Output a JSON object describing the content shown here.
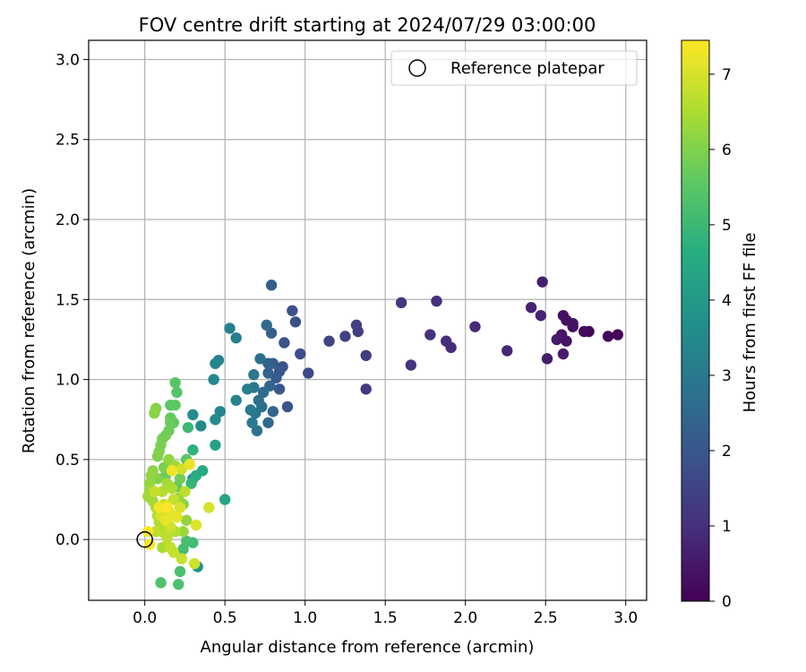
{
  "chart_data": {
    "type": "scatter",
    "title": "FOV centre drift starting at 2024/07/29 03:00:00",
    "xlabel": "Angular distance from reference (arcmin)",
    "ylabel": "Rotation from reference (arcmin)",
    "xlim": [
      -0.35,
      3.13
    ],
    "ylim": [
      -0.38,
      3.12
    ],
    "xticks": [
      "0.0",
      "0.5",
      "1.0",
      "1.5",
      "2.0",
      "2.5",
      "3.0"
    ],
    "yticks": [
      "0.0",
      "0.5",
      "1.0",
      "1.5",
      "2.0",
      "2.5",
      "3.0"
    ],
    "grid": true,
    "legend": {
      "placement": "top-right",
      "entries": [
        "Reference platepar"
      ]
    },
    "reference_point": {
      "x": 0.0,
      "y": 0.0
    },
    "colorbar": {
      "label": "Hours from first FF file",
      "colormap": "viridis",
      "range": [
        0,
        7.45
      ],
      "ticks": [
        "0",
        "1",
        "2",
        "3",
        "4",
        "5",
        "6",
        "7"
      ]
    },
    "points": [
      {
        "x": 2.95,
        "y": 1.28,
        "h": 0.05
      },
      {
        "x": 2.89,
        "y": 1.27,
        "h": 0.1
      },
      {
        "x": 2.77,
        "y": 1.3,
        "h": 0.15
      },
      {
        "x": 2.74,
        "y": 1.3,
        "h": 0.2
      },
      {
        "x": 2.67,
        "y": 1.33,
        "h": 0.25
      },
      {
        "x": 2.63,
        "y": 1.37,
        "h": 0.3
      },
      {
        "x": 2.61,
        "y": 1.4,
        "h": 0.35
      },
      {
        "x": 2.67,
        "y": 1.35,
        "h": 0.38
      },
      {
        "x": 2.63,
        "y": 1.24,
        "h": 0.4
      },
      {
        "x": 2.6,
        "y": 1.28,
        "h": 0.45
      },
      {
        "x": 2.57,
        "y": 1.25,
        "h": 0.5
      },
      {
        "x": 2.61,
        "y": 1.16,
        "h": 0.55
      },
      {
        "x": 2.51,
        "y": 1.13,
        "h": 0.6
      },
      {
        "x": 2.48,
        "y": 1.61,
        "h": 0.65
      },
      {
        "x": 2.47,
        "y": 1.4,
        "h": 0.7
      },
      {
        "x": 2.41,
        "y": 1.45,
        "h": 0.75
      },
      {
        "x": 2.26,
        "y": 1.18,
        "h": 0.8
      },
      {
        "x": 2.06,
        "y": 1.33,
        "h": 0.85
      },
      {
        "x": 1.91,
        "y": 1.2,
        "h": 0.9
      },
      {
        "x": 1.88,
        "y": 1.24,
        "h": 0.95
      },
      {
        "x": 1.82,
        "y": 1.49,
        "h": 1.0
      },
      {
        "x": 1.78,
        "y": 1.28,
        "h": 1.05
      },
      {
        "x": 1.66,
        "y": 1.09,
        "h": 1.1
      },
      {
        "x": 1.6,
        "y": 1.48,
        "h": 1.15
      },
      {
        "x": 1.38,
        "y": 0.94,
        "h": 1.25
      },
      {
        "x": 1.38,
        "y": 1.15,
        "h": 1.3
      },
      {
        "x": 1.33,
        "y": 1.3,
        "h": 1.35
      },
      {
        "x": 1.32,
        "y": 1.34,
        "h": 1.4
      },
      {
        "x": 1.25,
        "y": 1.27,
        "h": 1.45
      },
      {
        "x": 1.15,
        "y": 1.24,
        "h": 1.5
      },
      {
        "x": 1.02,
        "y": 1.04,
        "h": 1.6
      },
      {
        "x": 0.97,
        "y": 1.16,
        "h": 1.7
      },
      {
        "x": 0.94,
        "y": 1.36,
        "h": 1.75
      },
      {
        "x": 0.92,
        "y": 1.43,
        "h": 1.8
      },
      {
        "x": 0.89,
        "y": 0.83,
        "h": 1.85
      },
      {
        "x": 0.87,
        "y": 1.23,
        "h": 1.9
      },
      {
        "x": 0.86,
        "y": 1.08,
        "h": 1.95
      },
      {
        "x": 0.84,
        "y": 0.94,
        "h": 2.0
      },
      {
        "x": 0.84,
        "y": 1.05,
        "h": 2.05
      },
      {
        "x": 0.82,
        "y": 1.01,
        "h": 2.1
      },
      {
        "x": 0.8,
        "y": 1.1,
        "h": 2.15
      },
      {
        "x": 0.79,
        "y": 1.59,
        "h": 2.2
      },
      {
        "x": 0.79,
        "y": 1.29,
        "h": 2.25
      },
      {
        "x": 0.77,
        "y": 1.1,
        "h": 2.3
      },
      {
        "x": 0.77,
        "y": 1.04,
        "h": 2.35
      },
      {
        "x": 0.78,
        "y": 0.96,
        "h": 2.4
      },
      {
        "x": 0.8,
        "y": 0.8,
        "h": 2.45
      },
      {
        "x": 0.77,
        "y": 0.73,
        "h": 2.5
      },
      {
        "x": 0.76,
        "y": 1.34,
        "h": 2.55
      },
      {
        "x": 0.74,
        "y": 0.92,
        "h": 2.6
      },
      {
        "x": 0.73,
        "y": 0.83,
        "h": 2.65
      },
      {
        "x": 0.71,
        "y": 0.87,
        "h": 2.7
      },
      {
        "x": 0.72,
        "y": 1.13,
        "h": 2.75
      },
      {
        "x": 0.7,
        "y": 0.68,
        "h": 2.8
      },
      {
        "x": 0.69,
        "y": 0.79,
        "h": 2.85
      },
      {
        "x": 0.68,
        "y": 0.95,
        "h": 2.9
      },
      {
        "x": 0.68,
        "y": 1.03,
        "h": 2.95
      },
      {
        "x": 0.67,
        "y": 0.73,
        "h": 3.0
      },
      {
        "x": 0.66,
        "y": 0.81,
        "h": 3.05
      },
      {
        "x": 0.64,
        "y": 0.94,
        "h": 3.1
      },
      {
        "x": 0.57,
        "y": 1.26,
        "h": 3.15
      },
      {
        "x": 0.53,
        "y": 1.32,
        "h": 3.2
      },
      {
        "x": 0.57,
        "y": 0.87,
        "h": 3.25
      },
      {
        "x": 0.46,
        "y": 1.12,
        "h": 3.3
      },
      {
        "x": 0.47,
        "y": 0.8,
        "h": 3.35
      },
      {
        "x": 0.44,
        "y": 1.1,
        "h": 3.4
      },
      {
        "x": 0.43,
        "y": 1.0,
        "h": 3.45
      },
      {
        "x": 0.44,
        "y": 0.75,
        "h": 3.5
      },
      {
        "x": 0.35,
        "y": 0.71,
        "h": 3.55
      },
      {
        "x": 0.3,
        "y": 0.78,
        "h": 3.6
      },
      {
        "x": 0.3,
        "y": 0.38,
        "h": 3.7
      },
      {
        "x": 0.33,
        "y": -0.17,
        "h": 3.9
      },
      {
        "x": 0.44,
        "y": 0.59,
        "h": 4.2
      },
      {
        "x": 0.5,
        "y": 0.25,
        "h": 4.35
      },
      {
        "x": 0.36,
        "y": 0.43,
        "h": 4.5
      },
      {
        "x": 0.32,
        "y": 0.4,
        "h": 4.6
      },
      {
        "x": 0.3,
        "y": 0.56,
        "h": 4.8
      },
      {
        "x": 0.29,
        "y": 0.35,
        "h": 4.9
      },
      {
        "x": 0.27,
        "y": 0.7,
        "h": 5.0
      },
      {
        "x": 0.3,
        "y": -0.02,
        "h": 5.1
      },
      {
        "x": 0.24,
        "y": -0.06,
        "h": 5.15
      },
      {
        "x": 0.26,
        "y": -0.01,
        "h": 5.2
      },
      {
        "x": 0.22,
        "y": -0.2,
        "h": 5.25
      },
      {
        "x": 0.21,
        "y": -0.28,
        "h": 5.3
      },
      {
        "x": 0.1,
        "y": -0.27,
        "h": 5.35
      },
      {
        "x": 0.2,
        "y": 0.92,
        "h": 5.4
      },
      {
        "x": 0.19,
        "y": 0.98,
        "h": 5.45
      },
      {
        "x": 0.16,
        "y": 0.84,
        "h": 5.5
      },
      {
        "x": 0.19,
        "y": 0.84,
        "h": 5.55
      },
      {
        "x": 0.18,
        "y": 0.73,
        "h": 5.6
      },
      {
        "x": 0.16,
        "y": 0.76,
        "h": 5.65
      },
      {
        "x": 0.16,
        "y": 0.73,
        "h": 5.7
      },
      {
        "x": 0.15,
        "y": 0.68,
        "h": 5.75
      },
      {
        "x": 0.13,
        "y": 0.65,
        "h": 5.8
      },
      {
        "x": 0.11,
        "y": 0.63,
        "h": 5.85
      },
      {
        "x": 0.1,
        "y": 0.59,
        "h": 5.9
      },
      {
        "x": 0.09,
        "y": 0.55,
        "h": 5.95
      },
      {
        "x": 0.08,
        "y": 0.52,
        "h": 6.0
      },
      {
        "x": 0.07,
        "y": 0.82,
        "h": 6.05
      },
      {
        "x": 0.06,
        "y": 0.79,
        "h": 6.1
      },
      {
        "x": 0.05,
        "y": 0.43,
        "h": 6.15
      },
      {
        "x": 0.04,
        "y": 0.4,
        "h": 6.2
      },
      {
        "x": 0.03,
        "y": 0.35,
        "h": 6.25
      },
      {
        "x": 0.03,
        "y": 0.3,
        "h": 6.3
      },
      {
        "x": 0.02,
        "y": 0.27,
        "h": 6.35
      },
      {
        "x": 0.05,
        "y": 0.24,
        "h": 6.4
      },
      {
        "x": 0.07,
        "y": 0.2,
        "h": 6.45
      },
      {
        "x": 0.08,
        "y": 0.15,
        "h": 6.5
      },
      {
        "x": 0.09,
        "y": 0.11,
        "h": 6.55
      },
      {
        "x": 0.1,
        "y": 0.07,
        "h": 6.6
      },
      {
        "x": 0.12,
        "y": 0.04,
        "h": 6.65
      },
      {
        "x": 0.14,
        "y": 0.01,
        "h": 6.7
      },
      {
        "x": 0.16,
        "y": -0.05,
        "h": 6.75
      },
      {
        "x": 0.18,
        "y": -0.08,
        "h": 6.8
      },
      {
        "x": 0.23,
        "y": -0.12,
        "h": 6.85
      },
      {
        "x": 0.31,
        "y": -0.15,
        "h": 6.9
      },
      {
        "x": 0.4,
        "y": 0.2,
        "h": 7.0
      },
      {
        "x": 0.32,
        "y": 0.09,
        "h": 7.1
      },
      {
        "x": 0.28,
        "y": 0.47,
        "h": 7.2
      },
      {
        "x": 0.17,
        "y": 0.43,
        "h": 7.3
      },
      {
        "x": 0.03,
        "y": -0.03,
        "h": 7.35
      },
      {
        "x": 0.02,
        "y": 0.05,
        "h": 7.4
      },
      {
        "x": 0.12,
        "y": 0.22,
        "h": 6.9
      },
      {
        "x": 0.15,
        "y": 0.18,
        "h": 7.1
      },
      {
        "x": 0.18,
        "y": 0.25,
        "h": 6.8
      },
      {
        "x": 0.2,
        "y": 0.14,
        "h": 7.2
      },
      {
        "x": 0.22,
        "y": 0.2,
        "h": 7.0
      },
      {
        "x": 0.25,
        "y": 0.3,
        "h": 6.7
      },
      {
        "x": 0.11,
        "y": 0.3,
        "h": 6.6
      },
      {
        "x": 0.14,
        "y": 0.35,
        "h": 6.4
      },
      {
        "x": 0.17,
        "y": 0.32,
        "h": 6.5
      },
      {
        "x": 0.09,
        "y": 0.2,
        "h": 7.3
      },
      {
        "x": 0.13,
        "y": 0.12,
        "h": 7.2
      },
      {
        "x": 0.16,
        "y": 0.08,
        "h": 6.9
      },
      {
        "x": 0.19,
        "y": 0.05,
        "h": 6.6
      },
      {
        "x": 0.21,
        "y": 0.26,
        "h": 6.3
      },
      {
        "x": 0.24,
        "y": 0.22,
        "h": 6.1
      },
      {
        "x": 0.26,
        "y": 0.12,
        "h": 6.2
      },
      {
        "x": 0.08,
        "y": 0.38,
        "h": 6.0
      },
      {
        "x": 0.12,
        "y": 0.45,
        "h": 5.9
      },
      {
        "x": 0.15,
        "y": 0.5,
        "h": 6.2
      },
      {
        "x": 0.19,
        "y": 0.46,
        "h": 6.4
      },
      {
        "x": 0.22,
        "y": 0.38,
        "h": 5.8
      },
      {
        "x": 0.06,
        "y": 0.3,
        "h": 6.8
      },
      {
        "x": 0.1,
        "y": 0.15,
        "h": 7.0
      },
      {
        "x": 0.14,
        "y": 0.2,
        "h": 7.4
      },
      {
        "x": 0.17,
        "y": 0.15,
        "h": 7.1
      },
      {
        "x": 0.2,
        "y": 0.33,
        "h": 5.6
      },
      {
        "x": 0.13,
        "y": 0.4,
        "h": 5.7
      },
      {
        "x": 0.07,
        "y": 0.05,
        "h": 6.7
      },
      {
        "x": 0.24,
        "y": 0.05,
        "h": 6.3
      },
      {
        "x": 0.11,
        "y": -0.05,
        "h": 6.5
      },
      {
        "x": 0.26,
        "y": 0.5,
        "h": 5.5
      },
      {
        "x": 0.23,
        "y": 0.44,
        "h": 6.9
      }
    ]
  }
}
